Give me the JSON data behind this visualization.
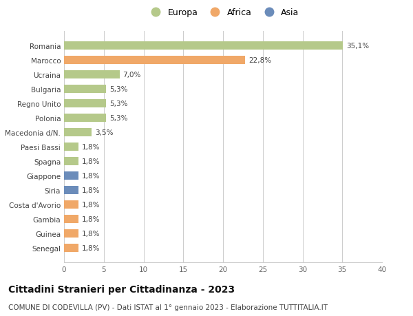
{
  "categories": [
    "Senegal",
    "Guinea",
    "Gambia",
    "Costa d'Avorio",
    "Siria",
    "Giappone",
    "Spagna",
    "Paesi Bassi",
    "Macedonia d/N.",
    "Polonia",
    "Regno Unito",
    "Bulgaria",
    "Ucraina",
    "Marocco",
    "Romania"
  ],
  "values": [
    1.8,
    1.8,
    1.8,
    1.8,
    1.8,
    1.8,
    1.8,
    1.8,
    3.5,
    5.3,
    5.3,
    5.3,
    7.0,
    22.8,
    35.1
  ],
  "colors": [
    "#f0a868",
    "#f0a868",
    "#f0a868",
    "#f0a868",
    "#6b8cba",
    "#6b8cba",
    "#b5c98a",
    "#b5c98a",
    "#b5c98a",
    "#b5c98a",
    "#b5c98a",
    "#b5c98a",
    "#b5c98a",
    "#f0a868",
    "#b5c98a"
  ],
  "labels": [
    "1,8%",
    "1,8%",
    "1,8%",
    "1,8%",
    "1,8%",
    "1,8%",
    "1,8%",
    "1,8%",
    "3,5%",
    "5,3%",
    "5,3%",
    "5,3%",
    "7,0%",
    "22,8%",
    "35,1%"
  ],
  "legend": [
    {
      "label": "Europa",
      "color": "#b5c98a"
    },
    {
      "label": "Africa",
      "color": "#f0a868"
    },
    {
      "label": "Asia",
      "color": "#6b8cba"
    }
  ],
  "xlim": [
    0,
    40
  ],
  "xticks": [
    0,
    5,
    10,
    15,
    20,
    25,
    30,
    35,
    40
  ],
  "title": "Cittadini Stranieri per Cittadinanza - 2023",
  "subtitle": "COMUNE DI CODEVILLA (PV) - Dati ISTAT al 1° gennaio 2023 - Elaborazione TUTTITALIA.IT",
  "bg_color": "#ffffff",
  "bar_height": 0.55,
  "label_fontsize": 7.5,
  "tick_fontsize": 7.5,
  "legend_fontsize": 9,
  "title_fontsize": 10,
  "subtitle_fontsize": 7.5,
  "grid_color": "#cccccc"
}
